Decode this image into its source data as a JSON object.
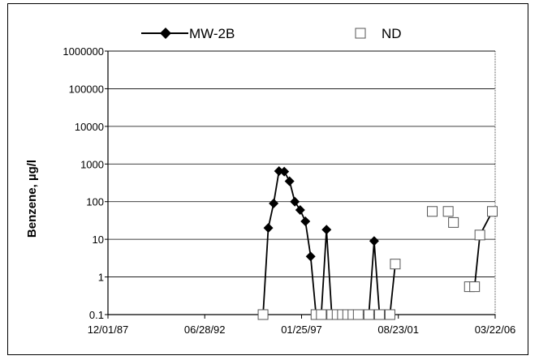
{
  "chart_data": {
    "type": "scatter",
    "title": "",
    "xlabel": "",
    "ylabel": "Benzene, µg/l",
    "y_scale": "log",
    "ylim": [
      0.1,
      1000000
    ],
    "xlim": [
      "12/01/87",
      "03/22/06"
    ],
    "x_tick_labels": [
      "12/01/87",
      "06/28/92",
      "01/25/97",
      "08/23/01",
      "03/22/06"
    ],
    "y_tick_labels": [
      "1000000",
      "100000",
      "10000",
      "1000",
      "100",
      "10",
      "1",
      "0.1"
    ],
    "grid": "horizontal",
    "legend_position": "top",
    "series": [
      {
        "name": "MW-2B",
        "marker": "diamond-filled",
        "color": "#000000",
        "points": [
          {
            "x": "1995-04-01",
            "y": 0.1,
            "detected": false
          },
          {
            "x": "1995-07-01",
            "y": 20
          },
          {
            "x": "1995-10-01",
            "y": 90
          },
          {
            "x": "1996-01-01",
            "y": 650
          },
          {
            "x": "1996-04-01",
            "y": 630
          },
          {
            "x": "1996-07-01",
            "y": 350
          },
          {
            "x": "1996-10-01",
            "y": 100
          },
          {
            "x": "1997-01-01",
            "y": 60
          },
          {
            "x": "1997-04-01",
            "y": 30
          },
          {
            "x": "1997-07-01",
            "y": 3.5
          },
          {
            "x": "1997-10-01",
            "y": 0.1,
            "detected": false
          },
          {
            "x": "1998-01-01",
            "y": 0.1,
            "detected": false
          },
          {
            "x": "1998-04-01",
            "y": 18
          },
          {
            "x": "1998-07-01",
            "y": 0.1,
            "detected": false
          },
          {
            "x": "1998-10-01",
            "y": 0.1,
            "detected": false
          },
          {
            "x": "1999-01-01",
            "y": 0.1,
            "detected": false
          },
          {
            "x": "1999-04-01",
            "y": 0.1,
            "detected": false
          },
          {
            "x": "1999-07-01",
            "y": 0.1,
            "detected": false
          },
          {
            "x": "1999-10-01",
            "y": 0.1,
            "detected": false
          },
          {
            "x": "2000-04-01",
            "y": 0.1,
            "detected": false
          },
          {
            "x": "2000-07-01",
            "y": 9
          },
          {
            "x": "2000-10-01",
            "y": 0.1,
            "detected": false
          },
          {
            "x": "2001-04-01",
            "y": 0.1,
            "detected": false
          },
          {
            "x": "2001-07-01",
            "y": 2.2,
            "detected": false
          },
          {
            "x": "2003-04-01",
            "y": 55,
            "detected": false
          },
          {
            "x": "2004-01-01",
            "y": 55,
            "detected": false
          },
          {
            "x": "2004-04-01",
            "y": 28,
            "detected": false
          },
          {
            "x": "2005-01-01",
            "y": 0.55,
            "detected": false
          },
          {
            "x": "2005-04-01",
            "y": 0.55,
            "detected": false
          },
          {
            "x": "2005-07-01",
            "y": 13,
            "detected": false
          },
          {
            "x": "2006-02-01",
            "y": 55,
            "detected": false
          }
        ],
        "segments": [
          [
            0,
            13
          ],
          [
            13,
            17
          ],
          [
            19,
            21
          ],
          [
            22,
            23
          ],
          [
            28,
            30
          ]
        ]
      }
    ],
    "legend": [
      {
        "label": "MW-2B",
        "marker": "diamond-filled-with-line"
      },
      {
        "label": "ND",
        "marker": "square-open"
      }
    ]
  }
}
